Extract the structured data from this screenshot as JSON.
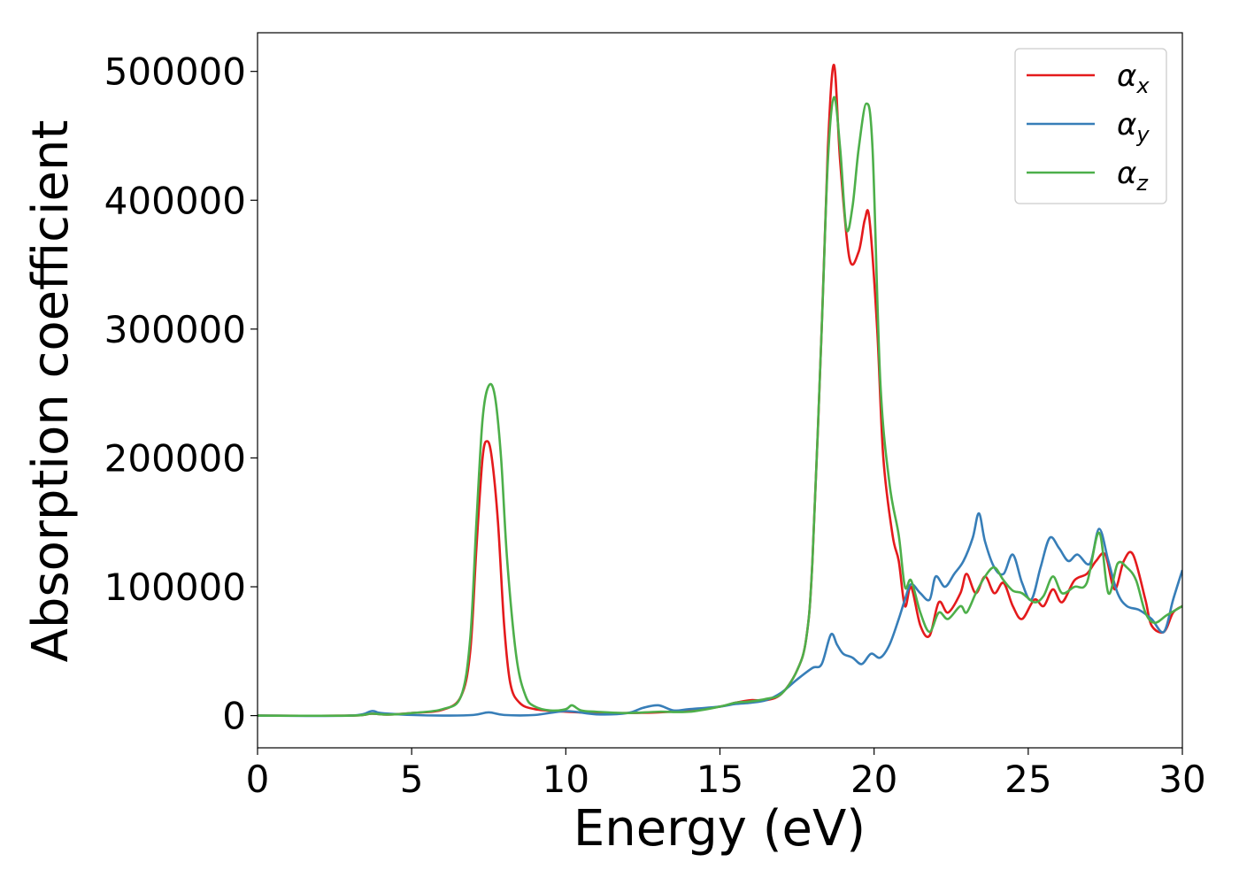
{
  "chart_data": {
    "type": "line",
    "xlabel": "Energy (eV)",
    "ylabel": "Absorption coefficient",
    "xlim": [
      0,
      30
    ],
    "ylim": [
      -25000,
      530000
    ],
    "xticks": [
      0,
      5,
      10,
      15,
      20,
      25,
      30
    ],
    "xtick_labels": [
      "0",
      "5",
      "10",
      "15",
      "20",
      "25",
      "30"
    ],
    "yticks": [
      0,
      100000,
      200000,
      300000,
      400000,
      500000
    ],
    "ytick_labels": [
      "0",
      "100000",
      "200000",
      "300000",
      "400000",
      "500000"
    ],
    "grid": false,
    "legend_position": "top-right",
    "series": [
      {
        "name": "α",
        "subscript": "x",
        "color": "#e41a1c",
        "x": [
          0,
          3.0,
          3.7,
          4.2,
          5,
          6,
          6.6,
          6.9,
          7.1,
          7.3,
          7.45,
          7.6,
          7.8,
          8.0,
          8.2,
          8.5,
          9,
          10,
          11,
          12,
          13,
          14,
          15,
          15.5,
          16,
          16.5,
          17,
          17.5,
          17.8,
          18.0,
          18.3,
          18.5,
          18.7,
          18.9,
          19.2,
          19.5,
          19.7,
          19.85,
          20.1,
          20.3,
          20.6,
          20.8,
          21.0,
          21.2,
          21.5,
          21.8,
          22.1,
          22.4,
          22.8,
          23.0,
          23.3,
          23.6,
          23.9,
          24.2,
          24.5,
          24.8,
          25.2,
          25.5,
          25.8,
          26.1,
          26.5,
          26.9,
          27.2,
          27.5,
          27.8,
          28.1,
          28.4,
          28.8,
          29.0,
          29.4,
          29.7,
          30
        ],
        "y": [
          0,
          0,
          1500,
          800,
          2000,
          4500,
          15000,
          50000,
          130000,
          200000,
          213000,
          200000,
          150000,
          70000,
          25000,
          10000,
          5000,
          3000,
          2000,
          2000,
          2500,
          4000,
          7000,
          10000,
          12000,
          12000,
          17000,
          35000,
          60000,
          120000,
          300000,
          440000,
          505000,
          430000,
          355000,
          360000,
          385000,
          385000,
          300000,
          200000,
          140000,
          120000,
          85000,
          100000,
          70000,
          62000,
          88000,
          80000,
          95000,
          110000,
          95000,
          108000,
          95000,
          103000,
          85000,
          75000,
          90000,
          85000,
          98000,
          88000,
          105000,
          110000,
          120000,
          125000,
          98000,
          120000,
          125000,
          90000,
          70000,
          65000,
          80000,
          85000
        ]
      },
      {
        "name": "α",
        "subscript": "y",
        "color": "#377eb8",
        "x": [
          0,
          3.0,
          3.7,
          4.0,
          5,
          6,
          7,
          7.5,
          8,
          9,
          10,
          11,
          12,
          12.5,
          13,
          13.5,
          14,
          15,
          15.5,
          16,
          16.5,
          17,
          17.5,
          18,
          18.3,
          18.6,
          18.8,
          19.0,
          19.3,
          19.6,
          19.9,
          20.2,
          20.5,
          20.8,
          21.0,
          21.2,
          21.5,
          21.8,
          22.0,
          22.3,
          22.6,
          22.9,
          23.2,
          23.4,
          23.6,
          23.9,
          24.2,
          24.5,
          24.8,
          25.1,
          25.4,
          25.7,
          26.0,
          26.3,
          26.6,
          27.0,
          27.3,
          27.6,
          27.9,
          28.2,
          28.6,
          29.0,
          29.4,
          29.7,
          30
        ],
        "y": [
          0,
          0,
          3500,
          2000,
          500,
          0,
          500,
          2500,
          500,
          500,
          3500,
          1000,
          2000,
          6000,
          8000,
          4000,
          5000,
          7000,
          9000,
          10000,
          12000,
          18000,
          28000,
          37000,
          40000,
          63000,
          55000,
          48000,
          45000,
          40000,
          48000,
          45000,
          55000,
          75000,
          90000,
          102000,
          95000,
          90000,
          108000,
          100000,
          110000,
          120000,
          138000,
          157000,
          135000,
          115000,
          110000,
          125000,
          103000,
          90000,
          115000,
          138000,
          130000,
          120000,
          125000,
          118000,
          145000,
          120000,
          95000,
          85000,
          82000,
          75000,
          65000,
          90000,
          113000
        ]
      },
      {
        "name": "α",
        "subscript": "z",
        "color": "#4daf4a",
        "x": [
          0,
          3.0,
          3.7,
          4.2,
          5,
          6,
          6.6,
          6.9,
          7.1,
          7.3,
          7.5,
          7.7,
          7.9,
          8.1,
          8.4,
          8.7,
          9.0,
          9.5,
          10.0,
          10.2,
          10.5,
          11,
          12,
          13,
          14,
          15,
          15.5,
          16,
          16.5,
          17,
          17.5,
          17.8,
          18.0,
          18.3,
          18.5,
          18.7,
          18.9,
          19.1,
          19.3,
          19.5,
          19.75,
          19.95,
          20.2,
          20.5,
          20.8,
          21.0,
          21.2,
          21.5,
          21.8,
          22.1,
          22.4,
          22.8,
          23.0,
          23.3,
          23.6,
          23.9,
          24.2,
          24.5,
          24.8,
          25.2,
          25.5,
          25.8,
          26.1,
          26.5,
          26.9,
          27.3,
          27.6,
          27.9,
          28.2,
          28.5,
          28.8,
          29.1,
          29.5,
          30
        ],
        "y": [
          0,
          0,
          1500,
          800,
          2000,
          5000,
          15000,
          60000,
          150000,
          230000,
          256000,
          248000,
          200000,
          120000,
          45000,
          15000,
          7000,
          4000,
          5000,
          8000,
          4000,
          3000,
          2000,
          3000,
          3000,
          7000,
          10000,
          11000,
          13000,
          17000,
          35000,
          60000,
          120000,
          300000,
          430000,
          480000,
          440000,
          378000,
          395000,
          440000,
          475000,
          440000,
          260000,
          180000,
          140000,
          100000,
          105000,
          80000,
          65000,
          80000,
          75000,
          85000,
          80000,
          95000,
          108000,
          115000,
          105000,
          97000,
          95000,
          88000,
          93000,
          108000,
          95000,
          100000,
          103000,
          142000,
          95000,
          118000,
          115000,
          105000,
          80000,
          72000,
          78000,
          85000
        ]
      }
    ]
  }
}
